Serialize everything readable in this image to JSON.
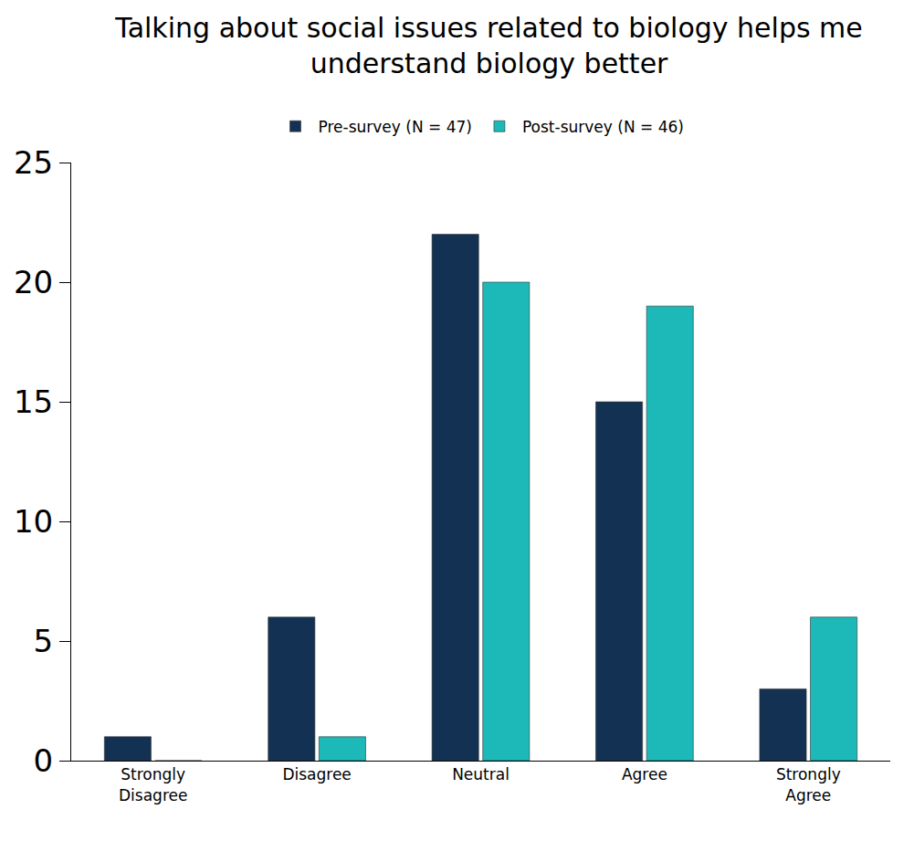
{
  "chart_data": {
    "type": "bar",
    "title": "Talking about social issues related to biology helps me understand biology better",
    "categories": [
      "Strongly Disagree",
      "Disagree",
      "Neutral",
      "Agree",
      "Strongly Agree"
    ],
    "series": [
      {
        "name": "Pre-survey (N = 47)",
        "color": "#133253",
        "values": [
          1,
          6,
          22,
          15,
          3
        ]
      },
      {
        "name": "Post-survey (N = 46)",
        "color": "#1db8b8",
        "values": [
          0,
          1,
          20,
          19,
          6
        ]
      }
    ],
    "ylim": [
      0,
      25
    ],
    "yticks": [
      0,
      5,
      10,
      15,
      20,
      25
    ],
    "grid": false,
    "legend": "top"
  }
}
